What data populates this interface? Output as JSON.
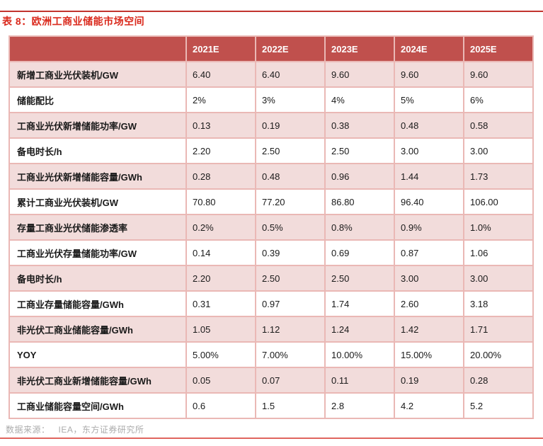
{
  "title": "表 8：欧洲工商业储能市场空间",
  "source": {
    "label": "数据来源：",
    "value": "IEA，东方证券研究所"
  },
  "colors": {
    "title_red": "#DA291C",
    "top_rule": "#C2342E",
    "header_bg": "#C0504D",
    "header_text": "#FFFFFF",
    "row_pink": "#F2DCDB",
    "border": "#EAB8B5",
    "bottom_rule": "#E0655E",
    "source_text": "#ACACAC"
  },
  "chart_data": {
    "type": "table",
    "title": "欧洲工商业储能市场空间",
    "columns": [
      "",
      "2021E",
      "2022E",
      "2023E",
      "2024E",
      "2025E"
    ],
    "rows": [
      {
        "label": "新增工商业光伏装机/GW",
        "values": [
          "6.40",
          "6.40",
          "9.60",
          "9.60",
          "9.60"
        ]
      },
      {
        "label": "储能配比",
        "values": [
          "2%",
          "3%",
          "4%",
          "5%",
          "6%"
        ]
      },
      {
        "label": "工商业光伏新增储能功率/GW",
        "values": [
          "0.13",
          "0.19",
          "0.38",
          "0.48",
          "0.58"
        ]
      },
      {
        "label": "备电时长/h",
        "values": [
          "2.20",
          "2.50",
          "2.50",
          "3.00",
          "3.00"
        ]
      },
      {
        "label": "工商业光伏新增储能容量/GWh",
        "values": [
          "0.28",
          "0.48",
          "0.96",
          "1.44",
          "1.73"
        ]
      },
      {
        "label": "累计工商业光伏装机/GW",
        "values": [
          "70.80",
          "77.20",
          "86.80",
          "96.40",
          "106.00"
        ]
      },
      {
        "label": "存量工商业光伏储能渗透率",
        "values": [
          "0.2%",
          "0.5%",
          "0.8%",
          "0.9%",
          "1.0%"
        ]
      },
      {
        "label": "工商业光伏存量储能功率/GW",
        "values": [
          "0.14",
          "0.39",
          "0.69",
          "0.87",
          "1.06"
        ]
      },
      {
        "label": "备电时长/h",
        "values": [
          "2.20",
          "2.50",
          "2.50",
          "3.00",
          "3.00"
        ]
      },
      {
        "label": "工商业存量储能容量/GWh",
        "values": [
          "0.31",
          "0.97",
          "1.74",
          "2.60",
          "3.18"
        ]
      },
      {
        "label": "非光伏工商业储能容量/GWh",
        "values": [
          "1.05",
          "1.12",
          "1.24",
          "1.42",
          "1.71"
        ]
      },
      {
        "label": "YOY",
        "values": [
          "5.00%",
          "7.00%",
          "10.00%",
          "15.00%",
          "20.00%"
        ]
      },
      {
        "label": "非光伏工商业新增储能容量/GWh",
        "values": [
          "0.05",
          "0.07",
          "0.11",
          "0.19",
          "0.28"
        ]
      },
      {
        "label": "工商业储能容量空间/GWh",
        "values": [
          "0.6",
          "1.5",
          "2.8",
          "4.2",
          "5.2"
        ]
      }
    ]
  }
}
